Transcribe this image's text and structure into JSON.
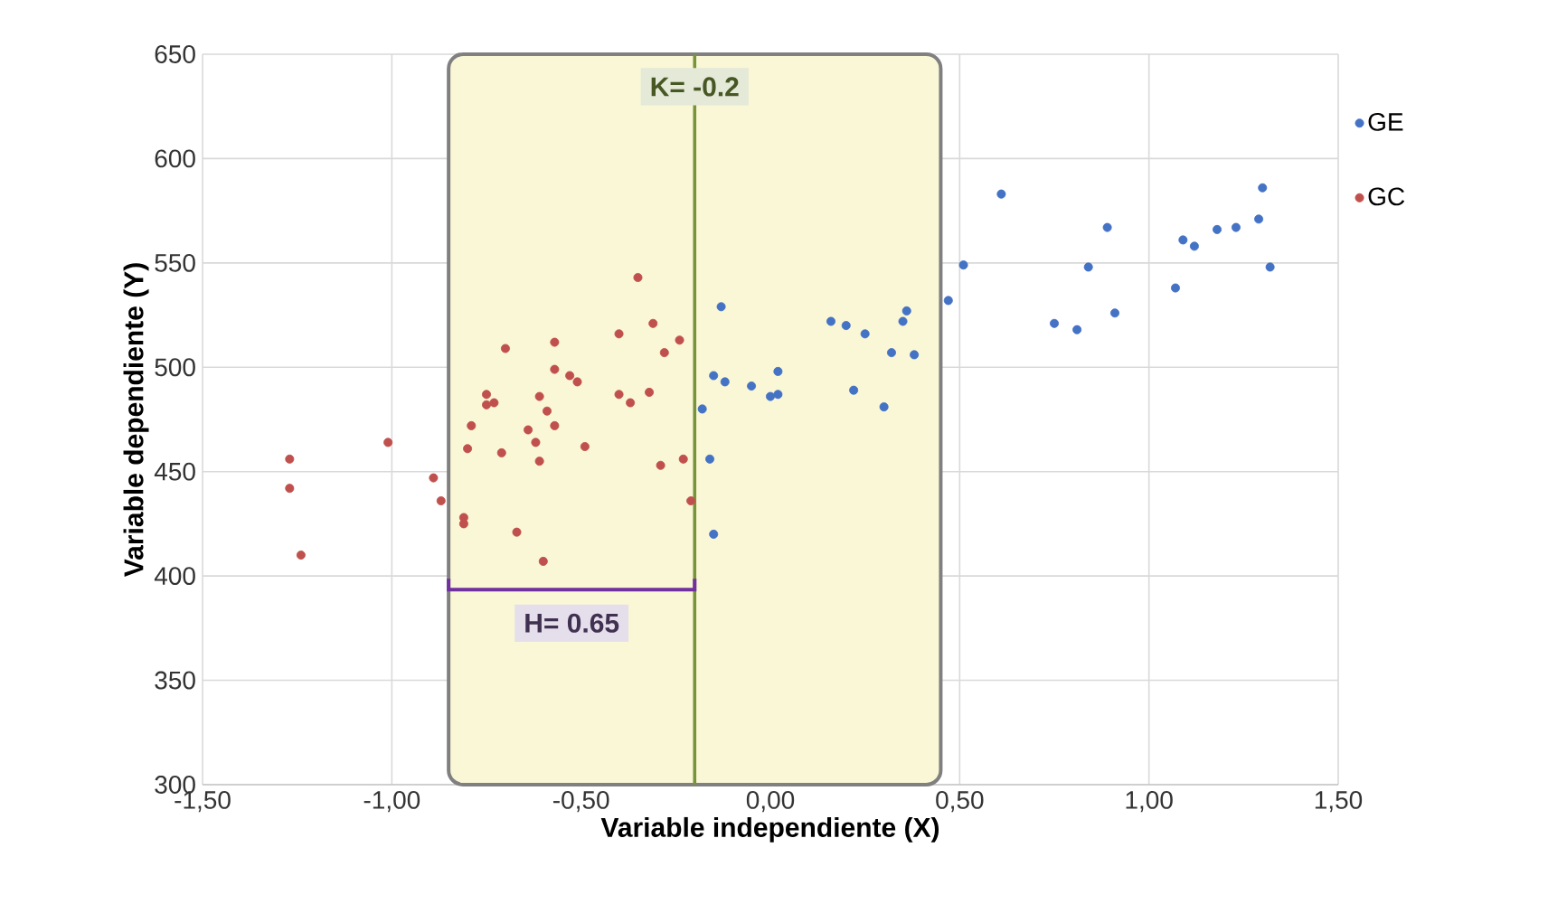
{
  "chart_data": {
    "type": "scatter",
    "xlabel": "Variable independiente (X)",
    "ylabel": "Variable dependiente (Y)",
    "xlim": [
      -1.5,
      1.5
    ],
    "ylim": [
      300,
      650
    ],
    "xticks": [
      {
        "value": -1.5,
        "label": "-1,50"
      },
      {
        "value": -1.0,
        "label": "-1,00"
      },
      {
        "value": -0.5,
        "label": "-0,50"
      },
      {
        "value": 0,
        "label": "0,00"
      },
      {
        "value": 0.5,
        "label": "0,50"
      },
      {
        "value": 1.0,
        "label": "1,00"
      },
      {
        "value": 1.5,
        "label": "1,50"
      }
    ],
    "yticks": [
      300,
      350,
      400,
      450,
      500,
      550,
      600,
      650
    ],
    "grid": true,
    "legend": "top right",
    "marker": "circle",
    "series": [
      {
        "name": "GE",
        "color": "#4472c4",
        "x": [
          -0.13,
          -0.15,
          -0.12,
          -0.05,
          0.0,
          0.02,
          0.02,
          -0.18,
          -0.16,
          -0.15,
          0.16,
          0.2,
          0.25,
          0.35,
          0.36,
          0.32,
          0.38,
          0.22,
          0.3,
          0.47,
          0.51,
          0.61,
          0.75,
          0.81,
          0.84,
          0.89,
          0.91,
          1.07,
          1.09,
          1.12,
          1.18,
          1.23,
          1.29,
          1.3,
          1.32
        ],
        "values": [
          529,
          496,
          493,
          491,
          486,
          487,
          498,
          480,
          456,
          420,
          522,
          520,
          516,
          522,
          527,
          507,
          506,
          489,
          481,
          532,
          549,
          583,
          521,
          518,
          548,
          567,
          526,
          538,
          561,
          558,
          566,
          567,
          571,
          586,
          548
        ]
      },
      {
        "name": "GC",
        "color": "#c0504d",
        "x": [
          -1.27,
          -1.27,
          -1.24,
          -1.01,
          -0.89,
          -0.87,
          -0.81,
          -0.81,
          -0.79,
          -0.8,
          -0.67,
          -0.6,
          -0.71,
          -0.64,
          -0.62,
          -0.61,
          -0.59,
          -0.57,
          -0.49,
          -0.29,
          -0.23,
          -0.21,
          -0.75,
          -0.73,
          -0.37,
          -0.35,
          -0.31,
          -0.24,
          -0.28,
          -0.4,
          -0.57,
          -0.7,
          -0.57,
          -0.53,
          -0.51,
          -0.75,
          -0.61,
          -0.4,
          -0.32
        ],
        "values": [
          456,
          442,
          410,
          464,
          447,
          436,
          428,
          425,
          472,
          461,
          421,
          407,
          459,
          470,
          464,
          455,
          479,
          472,
          462,
          453,
          456,
          436,
          482,
          483,
          483,
          543,
          521,
          513,
          507,
          516,
          512,
          509,
          499,
          496,
          493,
          487,
          486,
          487,
          488
        ]
      }
    ],
    "ref_lines": [
      {
        "axis": "x",
        "value": -0.2,
        "label": "K= -0.2",
        "color": "#77933c"
      }
    ],
    "bands": [
      {
        "axis": "x",
        "from": -0.85,
        "to": 0.45,
        "color": "#faf7d7"
      }
    ],
    "annotations": [
      "H= 0.65"
    ]
  }
}
